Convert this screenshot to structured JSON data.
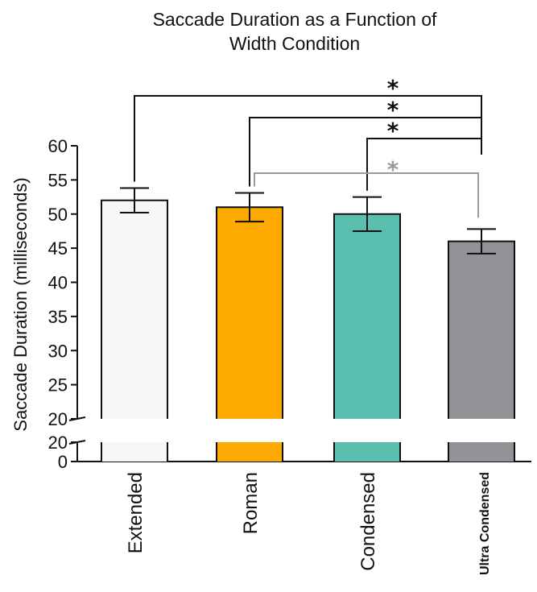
{
  "chart_data": {
    "type": "bar",
    "title_lines": [
      "Saccade Duration as a Function of",
      "Width Condition"
    ],
    "ylabel": "Saccade Duration (milliseconds)",
    "categories": [
      "Extended",
      "Roman",
      "Condensed",
      "Ultra Condensed"
    ],
    "values": [
      52,
      51,
      50,
      46
    ],
    "errors": [
      1.8,
      2.1,
      2.5,
      1.8
    ],
    "bar_colors": [
      "#f7f7f7",
      "#ffaa00",
      "#5bbfb0",
      "#939296"
    ],
    "ylim_upper": [
      20,
      60
    ],
    "yticks_upper": [
      "60",
      "55",
      "50",
      "45",
      "40",
      "35",
      "30",
      "25",
      "20"
    ],
    "ylim_lower": [
      0,
      20
    ],
    "yticks_lower": [
      "20",
      "0"
    ],
    "axis_break": true,
    "grid": false,
    "legend": "none",
    "significance": [
      {
        "from": "Extended",
        "to": "Ultra Condensed",
        "label": "*",
        "color": "#111111"
      },
      {
        "from": "Roman",
        "to": "Ultra Condensed",
        "label": "*",
        "color": "#111111"
      },
      {
        "from": "Condensed",
        "to": "Ultra Condensed",
        "label": "*",
        "color": "#111111"
      },
      {
        "from": "Roman",
        "to": "Ultra Condensed",
        "label": "*",
        "color": "#9a9a9a"
      }
    ]
  }
}
